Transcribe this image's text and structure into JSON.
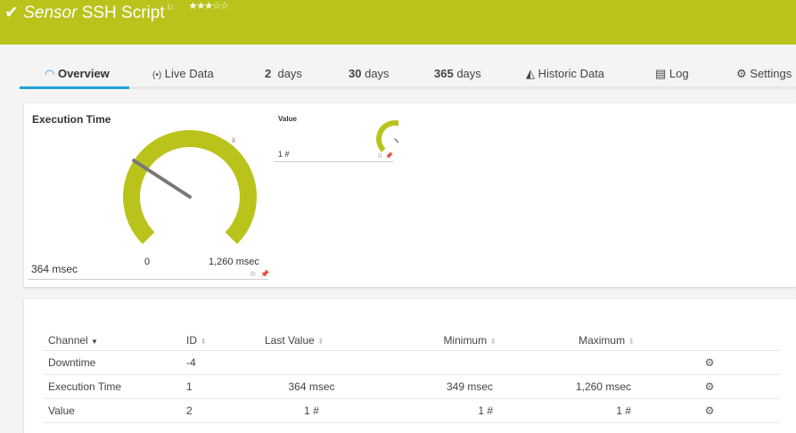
{
  "header": {
    "check_icon": "check-icon",
    "title_prefix": "Sensor",
    "title": "SSH Script",
    "flag_icon": "flag-icon",
    "priority_stars": 3,
    "stars_max": 5,
    "stars_text": "★★★☆☆",
    "color": "#b9c31b"
  },
  "tabs": [
    {
      "label": "Overview",
      "icon": "gauge-icon",
      "active": true
    },
    {
      "label": "Live Data",
      "icon": "broadcast-icon"
    },
    {
      "num": "2",
      "label": "days"
    },
    {
      "num": "30",
      "label": "days"
    },
    {
      "num": "365",
      "label": "days"
    },
    {
      "label": "Historic Data",
      "icon": "area-chart-icon"
    },
    {
      "label": "Log",
      "icon": "list-icon"
    },
    {
      "label": "Settings",
      "icon": "gear-icon"
    }
  ],
  "gauges": {
    "exec": {
      "title": "Execution Time",
      "value_text": "364 msec",
      "min_label": "0",
      "max_label": "1,260 msec",
      "value": 364,
      "min": 0,
      "max": 1260
    },
    "value": {
      "title": "Value",
      "value_text": "1 #",
      "value": 1,
      "min": 0,
      "max": 1
    }
  },
  "table": {
    "headers": [
      "Channel",
      "ID",
      "Last Value",
      "Minimum",
      "Maximum"
    ],
    "rows": [
      {
        "channel": "Downtime",
        "id": "-4",
        "last": "",
        "min": "",
        "max": ""
      },
      {
        "channel": "Execution Time",
        "id": "1",
        "last": "364 msec",
        "min": "349 msec",
        "max": "1,260 msec"
      },
      {
        "channel": "Value",
        "id": "2",
        "last": "1 #",
        "min": "1 #",
        "max": "1 #"
      }
    ]
  }
}
